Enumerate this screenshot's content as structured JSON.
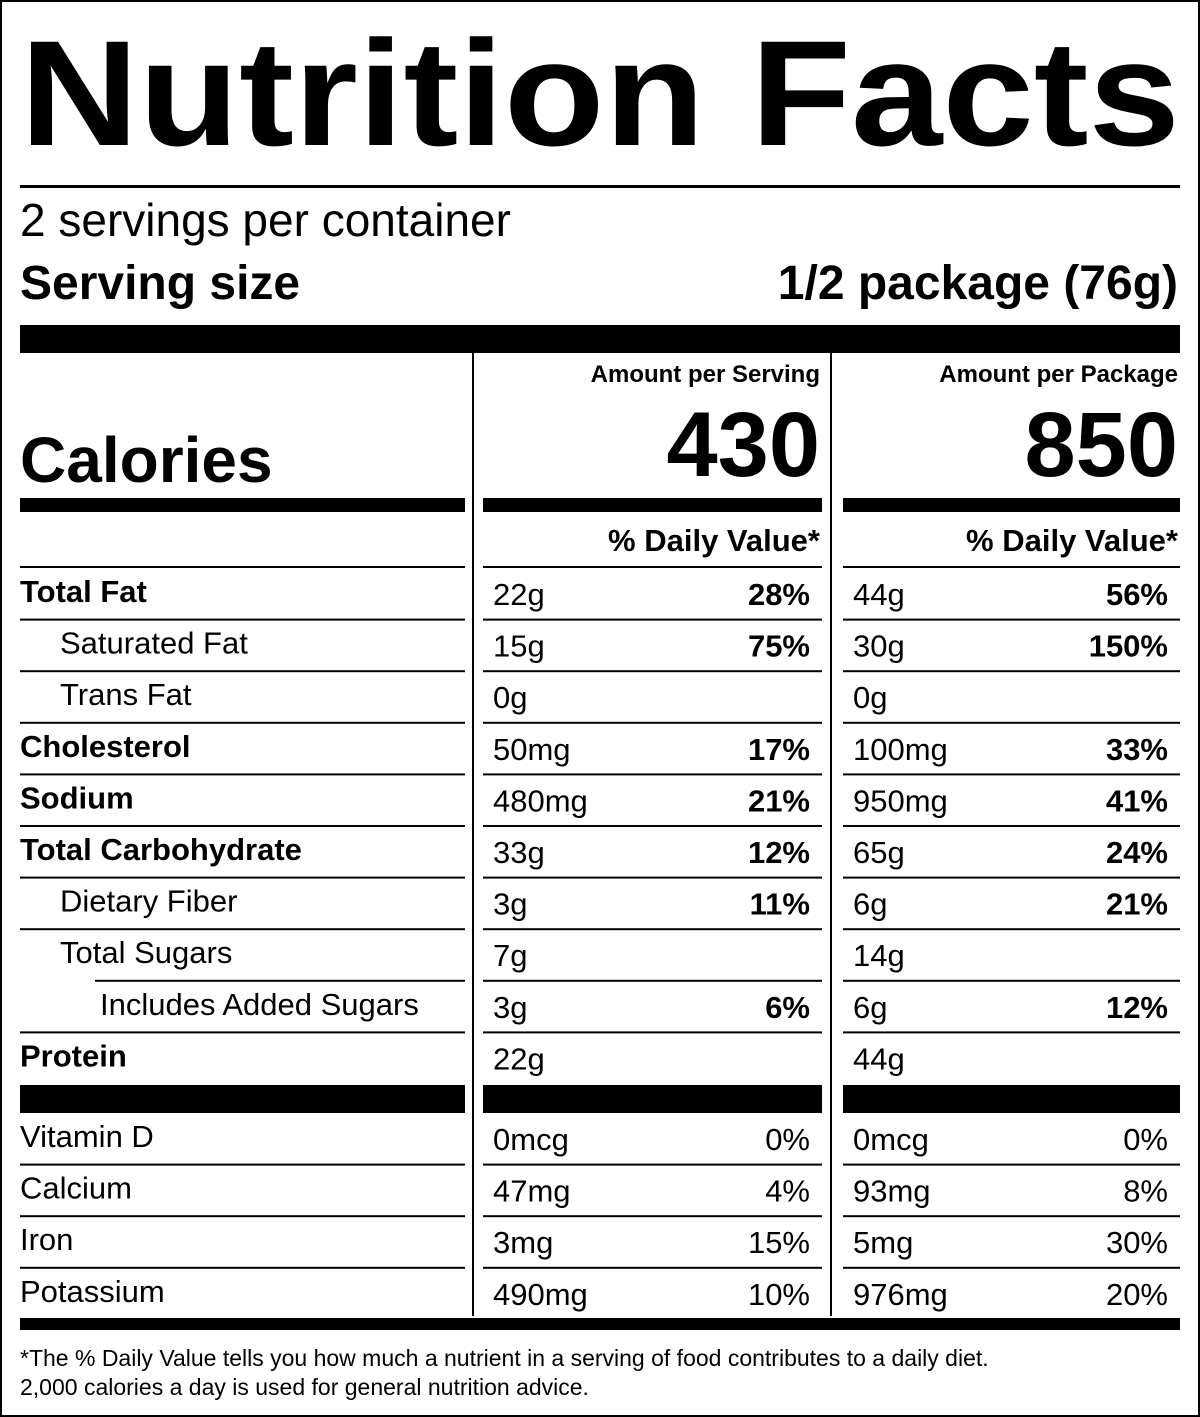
{
  "title": "Nutrition Facts",
  "servings": "2 servings per container",
  "serving_size": {
    "label": "Serving size",
    "value": "1/2 package (76g)"
  },
  "calories": {
    "label": "Calories",
    "columns": [
      {
        "header": "Amount per Serving",
        "value": "430"
      },
      {
        "header": "Amount per Package",
        "value": "850"
      }
    ]
  },
  "dv_headers": [
    "% Daily Value*",
    "% Daily Value*"
  ],
  "nutrients": [
    {
      "name": "Total Fat",
      "bold": true,
      "indent": 0,
      "cells": [
        [
          "22g",
          "28%"
        ],
        [
          "44g",
          "56%"
        ]
      ]
    },
    {
      "name": "Saturated Fat",
      "bold": false,
      "indent": 1,
      "cells": [
        [
          "15g",
          "75%"
        ],
        [
          "30g",
          "150%"
        ]
      ]
    },
    {
      "name": "Trans Fat",
      "bold": false,
      "indent": 1,
      "cells": [
        [
          "0g",
          null
        ],
        [
          "0g",
          null
        ]
      ]
    },
    {
      "name": "Cholesterol",
      "bold": true,
      "indent": 0,
      "cells": [
        [
          "50mg",
          "17%"
        ],
        [
          "100mg",
          "33%"
        ]
      ]
    },
    {
      "name": "Sodium",
      "bold": true,
      "indent": 0,
      "cells": [
        [
          "480mg",
          "21%"
        ],
        [
          "950mg",
          "41%"
        ]
      ]
    },
    {
      "name": "Total Carbohydrate",
      "bold": true,
      "indent": 0,
      "cells": [
        [
          "33g",
          "12%"
        ],
        [
          "65g",
          "24%"
        ]
      ]
    },
    {
      "name": "Dietary Fiber",
      "bold": false,
      "indent": 1,
      "cells": [
        [
          "3g",
          "11%"
        ],
        [
          "6g",
          "21%"
        ]
      ]
    },
    {
      "name": "Total Sugars",
      "bold": false,
      "indent": 1,
      "cells": [
        [
          "7g",
          null
        ],
        [
          "14g",
          null
        ]
      ]
    },
    {
      "name": "Includes Added Sugars",
      "bold": false,
      "indent": 2,
      "cells": [
        [
          "3g",
          "6%"
        ],
        [
          "6g",
          "12%"
        ]
      ]
    },
    {
      "name": "Protein",
      "bold": true,
      "indent": 0,
      "cells": [
        [
          "22g",
          null
        ],
        [
          "44g",
          null
        ]
      ]
    }
  ],
  "vitamins": [
    {
      "name": "Vitamin D",
      "cells": [
        [
          "0mcg",
          "0%"
        ],
        [
          "0mcg",
          "0%"
        ]
      ]
    },
    {
      "name": "Calcium",
      "cells": [
        [
          "47mg",
          "4%"
        ],
        [
          "93mg",
          "8%"
        ]
      ]
    },
    {
      "name": "Iron",
      "cells": [
        [
          "3mg",
          "15%"
        ],
        [
          "5mg",
          "30%"
        ]
      ]
    },
    {
      "name": "Potassium",
      "cells": [
        [
          "490mg",
          "10%"
        ],
        [
          "976mg",
          "20%"
        ]
      ]
    }
  ],
  "footnote": [
    "*The % Daily Value tells you how much a nutrient in a serving of food contributes to a daily diet.",
    "2,000 calories a day is used for general nutrition advice."
  ]
}
